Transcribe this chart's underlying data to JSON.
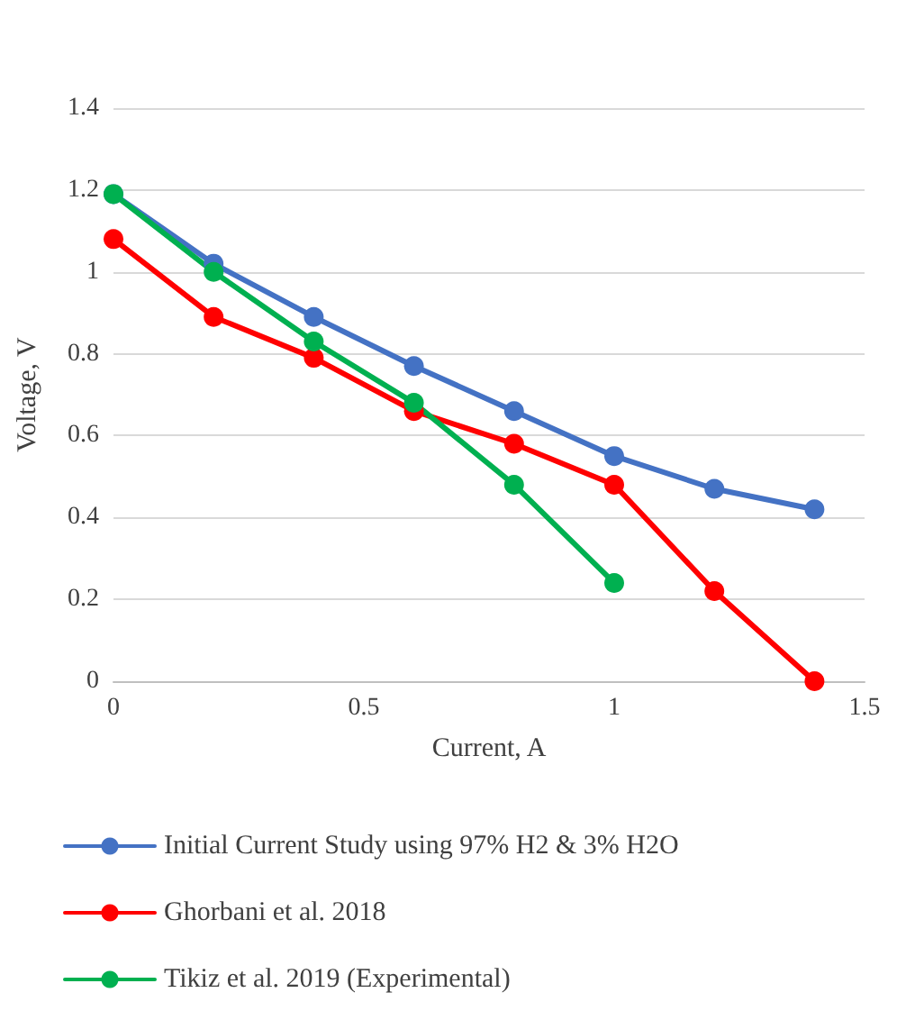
{
  "chart_data": {
    "type": "line",
    "xlabel": "Current, A",
    "ylabel": "Voltage, V",
    "xlim": [
      0,
      1.5
    ],
    "xticks": [
      0,
      0.5,
      1,
      1.5
    ],
    "ylim": [
      0,
      1.4
    ],
    "yticks": [
      0,
      0.2,
      0.4,
      0.6,
      0.8,
      1,
      1.2,
      1.4
    ],
    "grid": "y",
    "legend": "bottom",
    "marker": "circle",
    "line_style": "solid",
    "series": [
      {
        "name": "Initial Current Study using 97% H2 & 3% H2O",
        "color": "#4472c4",
        "x": [
          0,
          0.2,
          0.4,
          0.6,
          0.8,
          1,
          1.2,
          1.4
        ],
        "values": [
          1.19,
          1.02,
          0.89,
          0.77,
          0.66,
          0.55,
          0.47,
          0.42
        ]
      },
      {
        "name": "Ghorbani et al. 2018",
        "color": "#ff0000",
        "x": [
          0,
          0.2,
          0.4,
          0.6,
          0.8,
          1,
          1.2,
          1.4
        ],
        "values": [
          1.08,
          0.89,
          0.79,
          0.66,
          0.58,
          0.48,
          0.22,
          0
        ]
      },
      {
        "name": "Tikiz et al. 2019 (Experimental)",
        "color": "#00b050",
        "x": [
          0,
          0.2,
          0.4,
          0.6,
          0.8,
          1
        ],
        "values": [
          1.19,
          1.0,
          0.83,
          0.68,
          0.48,
          0.24
        ]
      }
    ]
  }
}
